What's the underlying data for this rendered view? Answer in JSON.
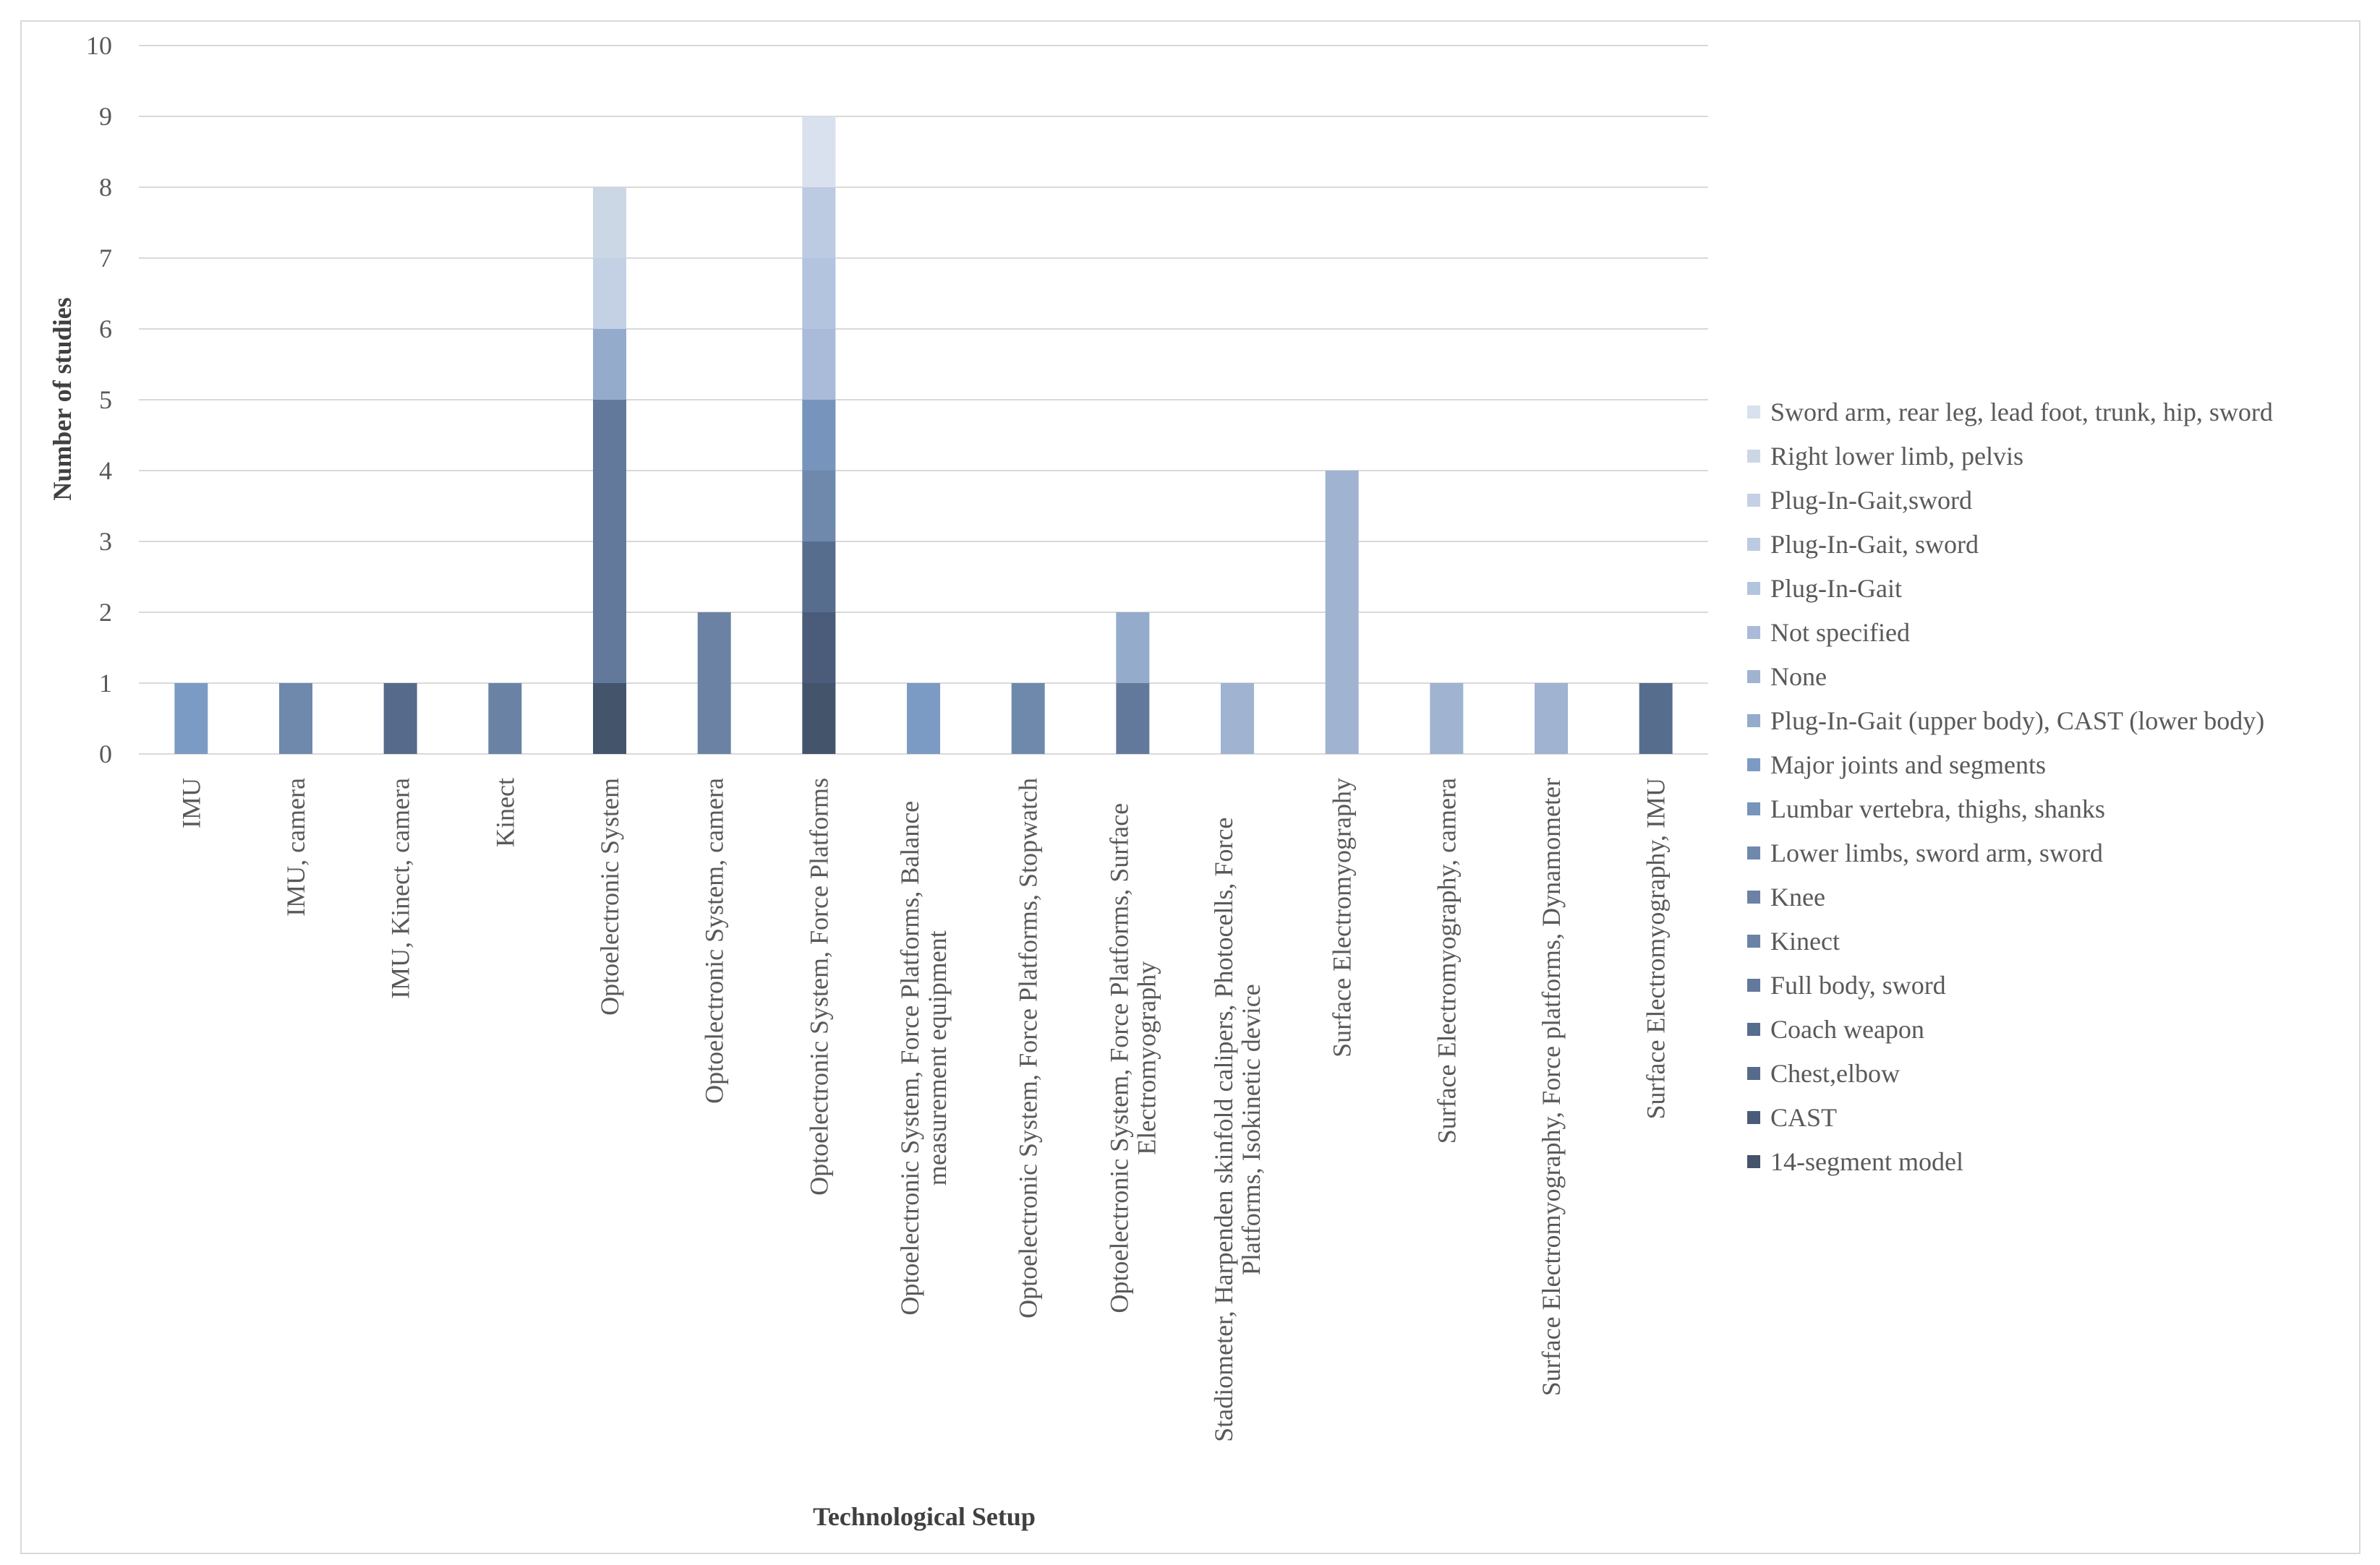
{
  "chart_data": {
    "type": "bar",
    "stacked": true,
    "title": "",
    "xlabel": "Technological Setup",
    "ylabel": "Number of studies",
    "ylim": [
      0,
      10
    ],
    "yticks": [
      0,
      1,
      2,
      3,
      4,
      5,
      6,
      7,
      8,
      9,
      10
    ],
    "grid": true,
    "legend_position": "right",
    "categories": [
      "IMU",
      "IMU, camera",
      "IMU, Kinect, camera",
      "Kinect",
      "Optoelectronic System",
      "Optoelectronic System, camera",
      "Optoelectronic System, Force Platforms",
      "Optoelectronic System, Force Platforms, Balance measurement equipment",
      "Optoelectronic System, Force Platforms, Stopwatch",
      "Optoelectronic System, Force Platforms, Surface Electromyography",
      "Stadiometer, Harpenden skinfold calipers, Photocells, Force Platforms, Isokinetic device",
      "Surface Electromyography",
      "Surface Electromyography, camera",
      "Surface Electromyography, Force platforms, Dynamometer",
      "Surface Electromyography, IMU"
    ],
    "category_label_lines": [
      [
        "IMU"
      ],
      [
        "IMU, camera"
      ],
      [
        "IMU, Kinect, camera"
      ],
      [
        "Kinect"
      ],
      [
        "Optoelectronic System"
      ],
      [
        "Optoelectronic System, camera"
      ],
      [
        "Optoelectronic System, Force Platforms"
      ],
      [
        "Optoelectronic System, Force Platforms, Balance",
        "measurement equipment"
      ],
      [
        "Optoelectronic System, Force Platforms, Stopwatch"
      ],
      [
        "Optoelectronic System, Force Platforms, Surface",
        "Electromyography"
      ],
      [
        "Stadiometer, Harpenden skinfold calipers, Photocells, Force",
        "Platforms, Isokinetic device"
      ],
      [
        "Surface Electromyography"
      ],
      [
        "Surface Electromyography, camera"
      ],
      [
        "Surface Electromyography, Force platforms, Dynamometer"
      ],
      [
        "Surface Electromyography, IMU"
      ]
    ],
    "series": [
      {
        "name": "14-segment model",
        "color": "#44546a",
        "values": [
          0,
          0,
          0,
          0,
          1,
          0,
          1,
          0,
          0,
          0,
          0,
          0,
          0,
          0,
          0
        ]
      },
      {
        "name": "CAST",
        "color": "#4a5c7a",
        "values": [
          0,
          0,
          0,
          0,
          0,
          0,
          1,
          0,
          0,
          0,
          0,
          0,
          0,
          0,
          0
        ]
      },
      {
        "name": "Chest,elbow",
        "color": "#566b8b",
        "values": [
          0,
          0,
          1,
          0,
          0,
          0,
          0,
          0,
          0,
          0,
          0,
          0,
          0,
          0,
          0
        ]
      },
      {
        "name": "Coach weapon",
        "color": "#576d8e",
        "values": [
          0,
          0,
          0,
          0,
          0,
          0,
          1,
          0,
          0,
          0,
          0,
          0,
          0,
          0,
          1
        ]
      },
      {
        "name": "Full body, sword",
        "color": "#63799c",
        "values": [
          0,
          0,
          0,
          0,
          4,
          0,
          0,
          0,
          0,
          1,
          0,
          0,
          0,
          0,
          0
        ]
      },
      {
        "name": "Kinect",
        "color": "#6a83a5",
        "values": [
          0,
          0,
          0,
          1,
          0,
          0,
          0,
          0,
          0,
          0,
          0,
          0,
          0,
          0,
          0
        ]
      },
      {
        "name": "Knee",
        "color": "#6b82a4",
        "values": [
          0,
          0,
          0,
          0,
          0,
          2,
          0,
          0,
          0,
          0,
          0,
          0,
          0,
          0,
          0
        ]
      },
      {
        "name": "Lower limbs, sword arm, sword",
        "color": "#6f89ad",
        "values": [
          0,
          1,
          0,
          0,
          0,
          0,
          1,
          0,
          1,
          0,
          0,
          0,
          0,
          0,
          0
        ]
      },
      {
        "name": "Lumbar vertebra, thighs, shanks",
        "color": "#7694bc",
        "values": [
          0,
          0,
          0,
          0,
          0,
          0,
          1,
          0,
          0,
          0,
          0,
          0,
          0,
          0,
          0
        ]
      },
      {
        "name": "Major joints and segments",
        "color": "#7c9bc4",
        "values": [
          1,
          0,
          0,
          0,
          0,
          0,
          0,
          1,
          0,
          0,
          0,
          0,
          0,
          0,
          0
        ]
      },
      {
        "name": "Plug-In-Gait (upper body), CAST (lower body)",
        "color": "#94abcb",
        "values": [
          0,
          0,
          0,
          0,
          1,
          0,
          0,
          0,
          0,
          1,
          0,
          0,
          0,
          0,
          0
        ]
      },
      {
        "name": "None",
        "color": "#a0b3d0",
        "values": [
          0,
          0,
          0,
          0,
          0,
          0,
          0,
          0,
          0,
          0,
          1,
          4,
          1,
          1,
          0
        ]
      },
      {
        "name": "Not specified",
        "color": "#a9bbd8",
        "values": [
          0,
          0,
          0,
          0,
          0,
          0,
          1,
          0,
          0,
          0,
          0,
          0,
          0,
          0,
          0
        ]
      },
      {
        "name": "Plug-In-Gait",
        "color": "#b3c4df",
        "values": [
          0,
          0,
          0,
          0,
          0,
          0,
          1,
          0,
          0,
          0,
          0,
          0,
          0,
          0,
          0
        ]
      },
      {
        "name": "Plug-In-Gait, sword",
        "color": "#bccbe2",
        "values": [
          0,
          0,
          0,
          0,
          0,
          0,
          1,
          0,
          0,
          0,
          0,
          0,
          0,
          0,
          0
        ]
      },
      {
        "name": "Plug-In-Gait,sword",
        "color": "#c4d1e5",
        "values": [
          0,
          0,
          0,
          0,
          1,
          0,
          0,
          0,
          0,
          0,
          0,
          0,
          0,
          0,
          0
        ]
      },
      {
        "name": "Right lower limb, pelvis",
        "color": "#ccd7e6",
        "values": [
          0,
          0,
          0,
          0,
          1,
          0,
          0,
          0,
          0,
          0,
          0,
          0,
          0,
          0,
          0
        ]
      },
      {
        "name": "Sword arm, rear leg, lead foot, trunk, hip, sword",
        "color": "#d9e1ee",
        "values": [
          0,
          0,
          0,
          0,
          0,
          0,
          1,
          0,
          0,
          0,
          0,
          0,
          0,
          0,
          0
        ]
      }
    ]
  }
}
